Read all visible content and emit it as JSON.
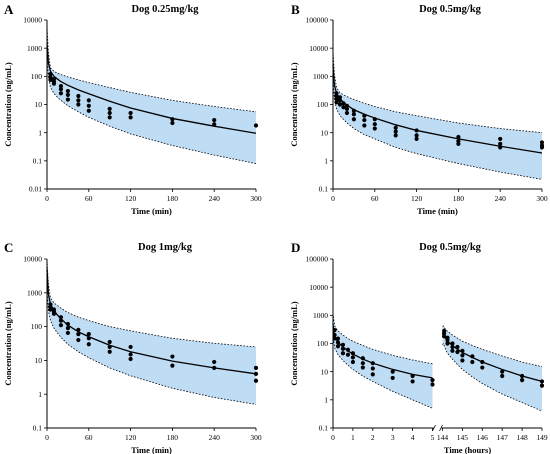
{
  "chart_data": [
    {
      "type": "scatter",
      "letter": "A",
      "title": "Dog 0.25mg/kg",
      "xlabel": "Time (min)",
      "ylabel": "Concentration (ng/mL)",
      "yscale": "log",
      "ylim": [
        0.01,
        10000
      ],
      "xlim": [
        0,
        300
      ],
      "xticks": [
        0,
        60,
        120,
        180,
        240,
        300
      ],
      "yticks": [
        0.01,
        0.1,
        1,
        10,
        100,
        1000,
        10000
      ],
      "ytick_labels": [
        "0.01",
        "0.1",
        "1",
        "10",
        "100",
        "1000",
        "10000"
      ],
      "fit_line": {
        "x": [
          0,
          2,
          5,
          10,
          15,
          20,
          30,
          45,
          60,
          90,
          120,
          180,
          240,
          300
        ],
        "y": [
          1400,
          300,
          150,
          100,
          80,
          65,
          48,
          33,
          24,
          13,
          7.5,
          3.2,
          1.7,
          0.95
        ]
      },
      "upper_band": {
        "x": [
          0,
          2,
          5,
          10,
          15,
          20,
          30,
          45,
          60,
          90,
          120,
          180,
          240,
          300
        ],
        "y": [
          6000,
          700,
          200,
          150,
          130,
          115,
          95,
          75,
          60,
          40,
          27,
          14,
          8.5,
          5.5
        ]
      },
      "lower_band": {
        "x": [
          0,
          2,
          5,
          10,
          15,
          20,
          30,
          45,
          60,
          90,
          120,
          180,
          240,
          300
        ],
        "y": [
          500,
          100,
          40,
          25,
          18,
          14,
          9,
          5.5,
          3.5,
          1.7,
          0.9,
          0.35,
          0.16,
          0.08
        ]
      },
      "observations": {
        "x": [
          5,
          5,
          5,
          10,
          10,
          10,
          20,
          20,
          20,
          30,
          30,
          30,
          45,
          45,
          45,
          60,
          60,
          60,
          90,
          90,
          90,
          120,
          120,
          180,
          180,
          240,
          240,
          300
        ],
        "y": [
          120,
          90,
          75,
          80,
          65,
          55,
          45,
          35,
          25,
          30,
          22,
          15,
          20,
          14,
          10,
          14,
          9,
          6,
          7,
          5,
          3.5,
          5,
          3.5,
          3,
          2.2,
          2.8,
          2,
          1.8
        ]
      }
    },
    {
      "type": "scatter",
      "letter": "B",
      "title": "Dog 0.5mg/kg",
      "xlabel": "Time (min)",
      "ylabel": "Concentration (ng/mL)",
      "yscale": "log",
      "ylim": [
        0.1,
        100000
      ],
      "xlim": [
        0,
        300
      ],
      "xticks": [
        0,
        60,
        120,
        180,
        240,
        300
      ],
      "yticks": [
        0.1,
        1,
        10,
        100,
        1000,
        10000,
        100000
      ],
      "ytick_labels": [
        "0.1",
        "1",
        "10",
        "100",
        "1000",
        "10000",
        "100000"
      ],
      "fit_line": {
        "x": [
          0,
          2,
          5,
          10,
          15,
          20,
          30,
          45,
          60,
          90,
          120,
          180,
          240,
          300
        ],
        "y": [
          2500,
          500,
          250,
          160,
          120,
          95,
          65,
          45,
          33,
          19,
          12,
          6,
          3.3,
          1.9
        ]
      },
      "upper_band": {
        "x": [
          0,
          2,
          5,
          10,
          15,
          20,
          30,
          45,
          60,
          90,
          120,
          180,
          240,
          300
        ],
        "y": [
          8000,
          1200,
          400,
          260,
          220,
          190,
          150,
          110,
          85,
          55,
          40,
          22,
          14,
          10
        ]
      },
      "lower_band": {
        "x": [
          0,
          2,
          5,
          10,
          15,
          20,
          30,
          45,
          60,
          90,
          120,
          180,
          240,
          300
        ],
        "y": [
          800,
          150,
          70,
          40,
          30,
          22,
          14,
          8.5,
          6,
          3,
          1.8,
          0.8,
          0.4,
          0.22
        ]
      },
      "observations": {
        "x": [
          5,
          5,
          5,
          5,
          10,
          10,
          10,
          15,
          15,
          20,
          20,
          20,
          30,
          30,
          30,
          45,
          45,
          45,
          60,
          60,
          60,
          90,
          90,
          90,
          120,
          120,
          120,
          180,
          180,
          180,
          240,
          240,
          240,
          300,
          300,
          300
        ],
        "y": [
          250,
          200,
          160,
          120,
          180,
          140,
          100,
          110,
          80,
          90,
          70,
          50,
          60,
          45,
          30,
          40,
          28,
          18,
          30,
          20,
          14,
          15,
          11,
          8,
          12,
          8,
          6,
          7,
          5,
          4,
          6,
          4,
          3,
          4.5,
          3.5,
          3
        ]
      }
    },
    {
      "type": "scatter",
      "letter": "C",
      "title": "Dog 1mg/kg",
      "xlabel": "Time (min)",
      "ylabel": "Concentration (ng/mL)",
      "yscale": "log",
      "ylim": [
        0.1,
        10000
      ],
      "xlim": [
        0,
        300
      ],
      "xticks": [
        0,
        60,
        120,
        180,
        240,
        300
      ],
      "yticks": [
        0.1,
        1,
        10,
        100,
        1000,
        10000
      ],
      "ytick_labels": [
        "0.1",
        "1",
        "10",
        "100",
        "1000",
        "10000"
      ],
      "fit_line": {
        "x": [
          0,
          2,
          5,
          10,
          15,
          20,
          30,
          45,
          60,
          90,
          120,
          180,
          240,
          300
        ],
        "y": [
          5000,
          900,
          450,
          300,
          220,
          170,
          110,
          70,
          50,
          28,
          18,
          9.5,
          6,
          4
        ]
      },
      "upper_band": {
        "x": [
          0,
          2,
          5,
          10,
          15,
          20,
          30,
          45,
          60,
          90,
          120,
          180,
          240,
          300
        ],
        "y": [
          9000,
          1800,
          700,
          500,
          420,
          350,
          260,
          190,
          150,
          100,
          75,
          45,
          32,
          25
        ]
      },
      "lower_band": {
        "x": [
          0,
          2,
          5,
          10,
          15,
          20,
          30,
          45,
          60,
          90,
          120,
          180,
          240,
          300
        ],
        "y": [
          1200,
          300,
          150,
          90,
          65,
          48,
          30,
          18,
          12,
          6,
          3.5,
          1.5,
          0.8,
          0.5
        ]
      },
      "observations": {
        "x": [
          5,
          5,
          5,
          10,
          10,
          10,
          20,
          20,
          20,
          30,
          30,
          30,
          45,
          45,
          45,
          60,
          60,
          60,
          90,
          90,
          90,
          120,
          120,
          120,
          180,
          180,
          240,
          240,
          300,
          300,
          300
        ],
        "y": [
          450,
          380,
          320,
          320,
          280,
          240,
          190,
          150,
          110,
          120,
          90,
          65,
          80,
          60,
          40,
          60,
          45,
          30,
          35,
          25,
          18,
          25,
          15,
          11,
          13,
          7,
          9,
          6,
          6,
          4,
          2.5
        ]
      }
    },
    {
      "type": "scatter",
      "letter": "D",
      "title": "Dog 0.5mg/kg",
      "xlabel": "Time (hours)",
      "ylabel": "Concentration (ng/mL)",
      "yscale": "log",
      "ylim": [
        0.1,
        100000
      ],
      "x_segments": [
        [
          0,
          5
        ],
        [
          144,
          149
        ]
      ],
      "xticks": [
        0,
        1,
        2,
        3,
        4,
        5,
        144,
        145,
        146,
        147,
        148,
        149
      ],
      "yticks": [
        0.1,
        1,
        10,
        100,
        1000,
        10000,
        100000
      ],
      "ytick_labels": [
        "0.1",
        "1",
        "10",
        "100",
        "1000",
        "10000",
        "100000"
      ],
      "fit_line": {
        "x": [
          0,
          0.05,
          0.1,
          0.25,
          0.5,
          0.75,
          1,
          1.5,
          2,
          3,
          4,
          5,
          144,
          144.05,
          144.1,
          144.25,
          144.5,
          144.75,
          145,
          145.5,
          146,
          147,
          148,
          149
        ],
        "y": [
          500,
          250,
          170,
          110,
          75,
          55,
          42,
          28,
          20,
          12,
          8,
          6,
          200,
          230,
          180,
          120,
          85,
          62,
          48,
          32,
          22,
          12,
          7,
          4.5
        ]
      },
      "upper_band": {
        "x": [
          0,
          0.05,
          0.1,
          0.25,
          0.5,
          0.75,
          1,
          1.5,
          2,
          3,
          4,
          5,
          144,
          144.05,
          144.1,
          144.25,
          144.5,
          144.75,
          145,
          145.5,
          146,
          147,
          148,
          149
        ],
        "y": [
          1200,
          600,
          400,
          280,
          200,
          150,
          120,
          85,
          62,
          38,
          26,
          19,
          400,
          420,
          360,
          270,
          200,
          155,
          120,
          85,
          62,
          36,
          22,
          15
        ]
      },
      "lower_band": {
        "x": [
          0,
          0.05,
          0.1,
          0.25,
          0.5,
          0.75,
          1,
          1.5,
          2,
          3,
          4,
          5,
          144,
          144.05,
          144.1,
          144.25,
          144.5,
          144.75,
          145,
          145.5,
          146,
          147,
          148,
          149
        ],
        "y": [
          200,
          100,
          65,
          40,
          25,
          17,
          12,
          7,
          4.5,
          2,
          1,
          0.5,
          90,
          100,
          75,
          45,
          28,
          18,
          12,
          6.5,
          3.8,
          1.6,
          0.8,
          0.4
        ]
      },
      "observations": {
        "x": [
          0.08,
          0.08,
          0.08,
          0.25,
          0.25,
          0.25,
          0.5,
          0.5,
          0.5,
          0.75,
          0.75,
          1,
          1,
          1,
          1.5,
          1.5,
          1.5,
          2,
          2,
          2,
          3,
          3,
          4,
          4,
          5,
          5,
          144.08,
          144.08,
          144.08,
          144.25,
          144.25,
          144.25,
          144.5,
          144.5,
          144.5,
          144.75,
          144.75,
          145,
          145,
          145,
          145.5,
          145.5,
          146,
          146,
          147,
          147,
          148,
          148,
          149,
          149
        ],
        "y": [
          300,
          200,
          150,
          150,
          110,
          80,
          90,
          65,
          45,
          60,
          40,
          45,
          32,
          22,
          30,
          20,
          14,
          20,
          13,
          8,
          10,
          6,
          7,
          4.5,
          5,
          3.5,
          280,
          230,
          180,
          160,
          130,
          100,
          100,
          75,
          55,
          75,
          50,
          55,
          38,
          25,
          35,
          22,
          22,
          14,
          10,
          7,
          7,
          5,
          4.5,
          3.2
        ]
      }
    }
  ]
}
